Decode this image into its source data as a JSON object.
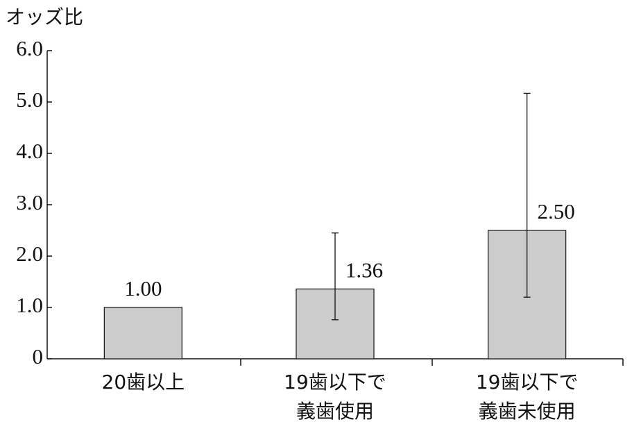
{
  "chart_data": {
    "type": "bar",
    "y_label": "オッズ比",
    "categories": [
      [
        "20歯以上"
      ],
      [
        "19歯以下で",
        "義歯使用"
      ],
      [
        "19歯以下で",
        "義歯未使用"
      ]
    ],
    "values": [
      1.0,
      1.36,
      2.5
    ],
    "value_labels": [
      "1.00",
      "1.36",
      "2.50"
    ],
    "ci_lower": [
      null,
      0.76,
      1.2
    ],
    "ci_upper": [
      null,
      2.45,
      5.17
    ],
    "color": "#cccccc",
    "ylim": [
      0,
      6
    ],
    "yticks": [
      0,
      {
        "value": 1,
        "label": "1.0"
      },
      {
        "value": 2,
        "label": "2.0"
      },
      {
        "value": 3,
        "label": "3.0"
      },
      {
        "value": 4,
        "label": "4.0"
      },
      {
        "value": 5,
        "label": "5.0"
      },
      {
        "value": 6,
        "label": "6.0"
      }
    ]
  }
}
